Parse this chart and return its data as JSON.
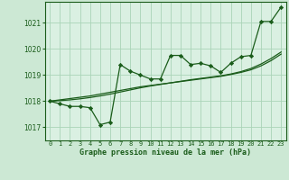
{
  "title": "Graphe pression niveau de la mer (hPa)",
  "bg_color": "#cce8d4",
  "plot_bg_color": "#daf0e2",
  "grid_color": "#aad4b8",
  "line_color": "#1a5c1a",
  "marker_color": "#1a5c1a",
  "x_labels": [
    "0",
    "1",
    "2",
    "3",
    "4",
    "5",
    "6",
    "7",
    "8",
    "9",
    "10",
    "11",
    "12",
    "13",
    "14",
    "15",
    "16",
    "17",
    "18",
    "19",
    "20",
    "21",
    "22",
    "23"
  ],
  "ylim": [
    1016.5,
    1021.8
  ],
  "yticks": [
    1017,
    1018,
    1019,
    1020,
    1021
  ],
  "main_series": [
    1018.0,
    1017.9,
    1017.8,
    1017.8,
    1017.75,
    1017.1,
    1017.2,
    1019.4,
    1019.15,
    1019.0,
    1018.85,
    1018.85,
    1019.75,
    1019.75,
    1019.4,
    1019.45,
    1019.35,
    1019.1,
    1019.45,
    1019.7,
    1019.75,
    1021.05,
    1021.05,
    1021.6
  ],
  "trend1": [
    1018.0,
    1018.05,
    1018.1,
    1018.15,
    1018.2,
    1018.27,
    1018.34,
    1018.41,
    1018.48,
    1018.55,
    1018.6,
    1018.65,
    1018.7,
    1018.75,
    1018.8,
    1018.85,
    1018.9,
    1018.95,
    1019.02,
    1019.1,
    1019.2,
    1019.35,
    1019.55,
    1019.8
  ],
  "trend2": [
    1018.0,
    1018.02,
    1018.05,
    1018.09,
    1018.14,
    1018.2,
    1018.27,
    1018.35,
    1018.43,
    1018.51,
    1018.58,
    1018.64,
    1018.7,
    1018.76,
    1018.82,
    1018.87,
    1018.92,
    1018.97,
    1019.04,
    1019.13,
    1019.25,
    1019.42,
    1019.63,
    1019.88
  ]
}
